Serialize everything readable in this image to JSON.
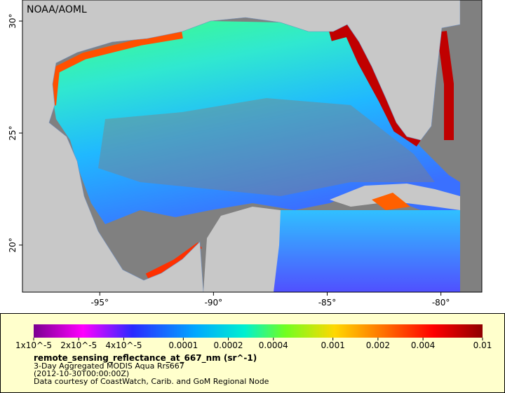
{
  "map": {
    "credit": "NOAA/AOML",
    "xlim": [
      -98.4,
      -78.2
    ],
    "ylim": [
      17.9,
      30.94
    ],
    "xticks": [
      {
        "value": -95,
        "label": "-95°"
      },
      {
        "value": -90,
        "label": "-90°"
      },
      {
        "value": -85,
        "label": "-85°"
      },
      {
        "value": -80,
        "label": "-80°"
      }
    ],
    "yticks": [
      {
        "value": 20,
        "label": "20°"
      },
      {
        "value": 25,
        "label": "25°"
      },
      {
        "value": 30,
        "label": "30°"
      }
    ]
  },
  "colorbar": {
    "scale": "log",
    "range": [
      1e-05,
      0.01
    ],
    "ticks": [
      {
        "value": 1e-05,
        "label": "1x10^-5"
      },
      {
        "value": 2e-05,
        "label": "2x10^-5"
      },
      {
        "value": 4e-05,
        "label": "4x10^-5"
      },
      0.0001,
      0.0002,
      0.0004,
      0.001,
      0.002,
      0.004,
      0.01
    ],
    "title": "remote_sensing_reflectance_at_667_nm (sr^-1)",
    "lines": [
      "3-Day Aggregated MODIS Aqua Rrs667",
      "(2012-10-30T00:00:00Z)",
      "Data courtesy of CoastWatch, Carib. and GoM Regional Node"
    ]
  }
}
